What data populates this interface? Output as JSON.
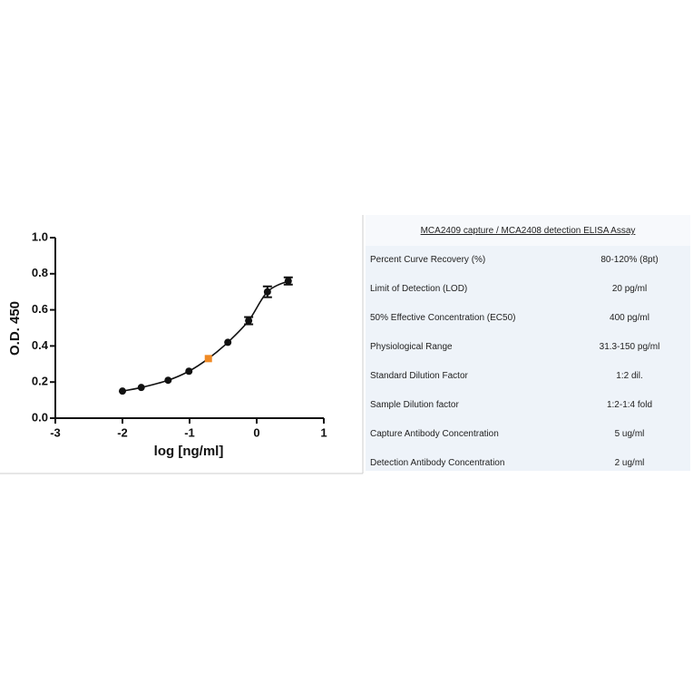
{
  "chart_data": {
    "type": "scatter",
    "x_label": "log [ng/ml]",
    "y_label": "O.D. 450",
    "x": [
      -2.0,
      -1.72,
      -1.32,
      -1.01,
      -0.72,
      -0.43,
      -0.12,
      0.16,
      0.47
    ],
    "values": [
      0.15,
      0.17,
      0.21,
      0.26,
      0.33,
      0.42,
      0.54,
      0.7,
      0.76
    ],
    "errors": [
      null,
      null,
      null,
      null,
      null,
      null,
      0.02,
      0.03,
      0.02
    ],
    "point_colors": [
      "#111111",
      "#111111",
      "#111111",
      "#111111",
      "#f08a24",
      "#111111",
      "#111111",
      "#111111",
      "#111111"
    ],
    "line_color": "#111111",
    "xlim": [
      -3,
      1
    ],
    "xticks": [
      -3,
      -2,
      -1,
      0,
      1
    ],
    "ylim": [
      0,
      1
    ],
    "yticks": [
      {
        "value": 0,
        "label": "0.0"
      },
      0.2,
      0.4,
      0.6,
      0.8,
      {
        "value": 1,
        "label": "1.0"
      }
    ]
  },
  "table": {
    "title": "MCA2409 capture / MCA2408 detection ELISA Assay",
    "rows": [
      [
        "Percent Curve Recovery (%)",
        "80-120% (8pt)"
      ],
      [
        "Limit of Detection (LOD)",
        "20 pg/ml"
      ],
      [
        "50% Effective Concentration (EC50)",
        "400 pg/ml"
      ],
      [
        "Physiological Range",
        "31.3-150 pg/ml"
      ],
      [
        "Standard Dilution Factor",
        "1:2 dil."
      ],
      [
        "Sample Dilution factor",
        "1:2-1:4 fold"
      ],
      [
        "Capture Antibody Concentration",
        "5 ug/ml"
      ],
      [
        "Detection Antibody Concentration",
        "2 ug/ml"
      ]
    ]
  }
}
